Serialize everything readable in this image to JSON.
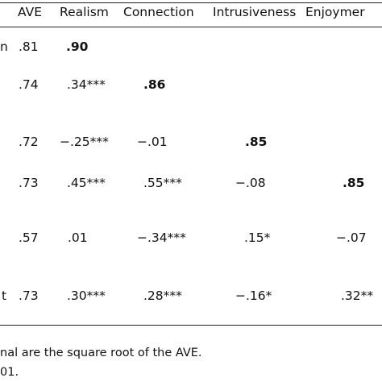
{
  "table": {
    "headers": [
      "AVE",
      "Realism",
      "Connection",
      "Intrusiveness",
      "Enjoymer"
    ],
    "rows": [
      {
        "label": "n",
        "ave": ".81",
        "cells": [
          ".90",
          "",
          "",
          ""
        ],
        "bold": [
          true,
          false,
          false,
          false
        ]
      },
      {
        "label": "",
        "ave": ".74",
        "cells": [
          ".34***",
          ".86",
          "",
          ""
        ],
        "bold": [
          false,
          true,
          false,
          false
        ]
      },
      {
        "label": "",
        "ave": ".72",
        "cells": [
          "−.25***",
          "−.01",
          ".85",
          ""
        ],
        "bold": [
          false,
          false,
          true,
          false
        ]
      },
      {
        "label": "",
        "ave": ".73",
        "cells": [
          ".45***",
          ".55***",
          "−.08",
          ".85"
        ],
        "bold": [
          false,
          false,
          false,
          true
        ]
      },
      {
        "label": "",
        "ave": ".57",
        "cells": [
          ".01",
          "−.34***",
          ".15*",
          "−.07"
        ],
        "bold": [
          false,
          false,
          false,
          false
        ]
      },
      {
        "label": "t",
        "ave": ".73",
        "cells": [
          ".30***",
          ".28***",
          "−.16*",
          ".32**"
        ],
        "bold": [
          false,
          false,
          false,
          false
        ]
      }
    ]
  },
  "footnotes": [
    "nal are the square root of the AVE.",
    "01."
  ]
}
